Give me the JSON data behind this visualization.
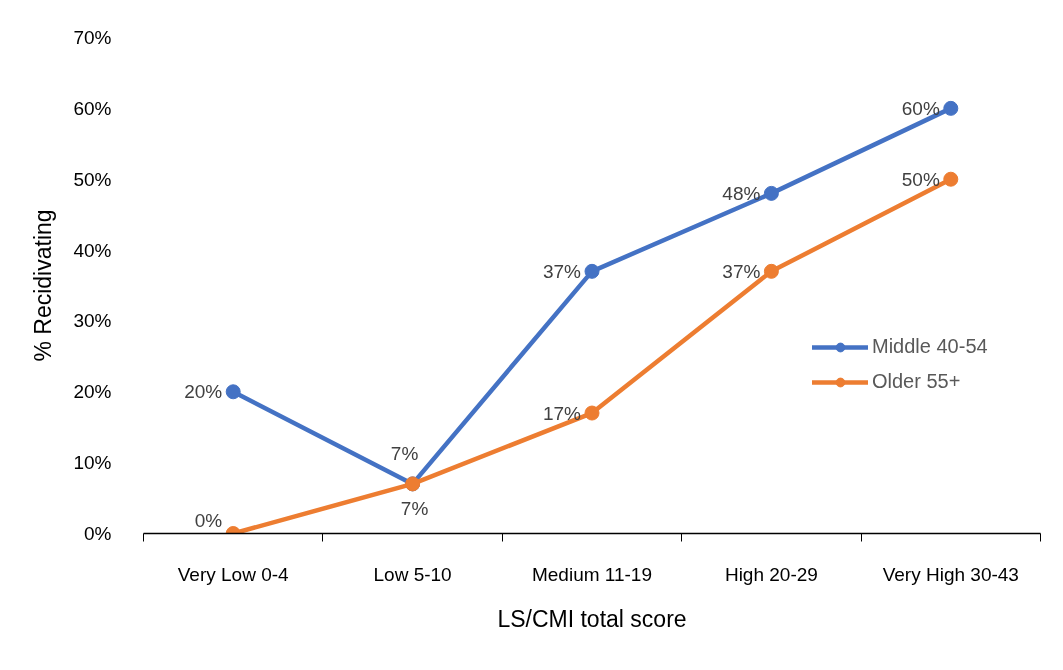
{
  "chart_data": {
    "type": "line",
    "xlabel": "LS/CMI total score",
    "ylabel": "% Recidivating",
    "categories": [
      "Very Low 0-4",
      "Low 5-10",
      "Medium 11-19",
      "High 20-29",
      "Very High 30-43"
    ],
    "series": [
      {
        "name": "Middle 40-54",
        "color": "#4472c4",
        "values": [
          20,
          7,
          37,
          48,
          60
        ],
        "value_labels": [
          "20%",
          "7%",
          "37%",
          "48%",
          "60%"
        ]
      },
      {
        "name": "Older 55+",
        "color": "#ed7d31",
        "values": [
          0,
          7,
          17,
          37,
          50
        ],
        "value_labels": [
          "0%",
          "7%",
          "17%",
          "37%",
          "50%"
        ]
      }
    ],
    "ylim": [
      0,
      70
    ],
    "yticks": [
      {
        "value": 0,
        "label": "0%"
      },
      {
        "value": 10,
        "label": "10%"
      },
      {
        "value": 20,
        "label": "20%"
      },
      {
        "value": 30,
        "label": "30%"
      },
      {
        "value": 40,
        "label": "40%"
      },
      {
        "value": 50,
        "label": "50%"
      },
      {
        "value": 60,
        "label": "60%"
      },
      {
        "value": 70,
        "label": "70%"
      }
    ],
    "legend": "right",
    "marker": "circle",
    "line_style": "solid"
  }
}
